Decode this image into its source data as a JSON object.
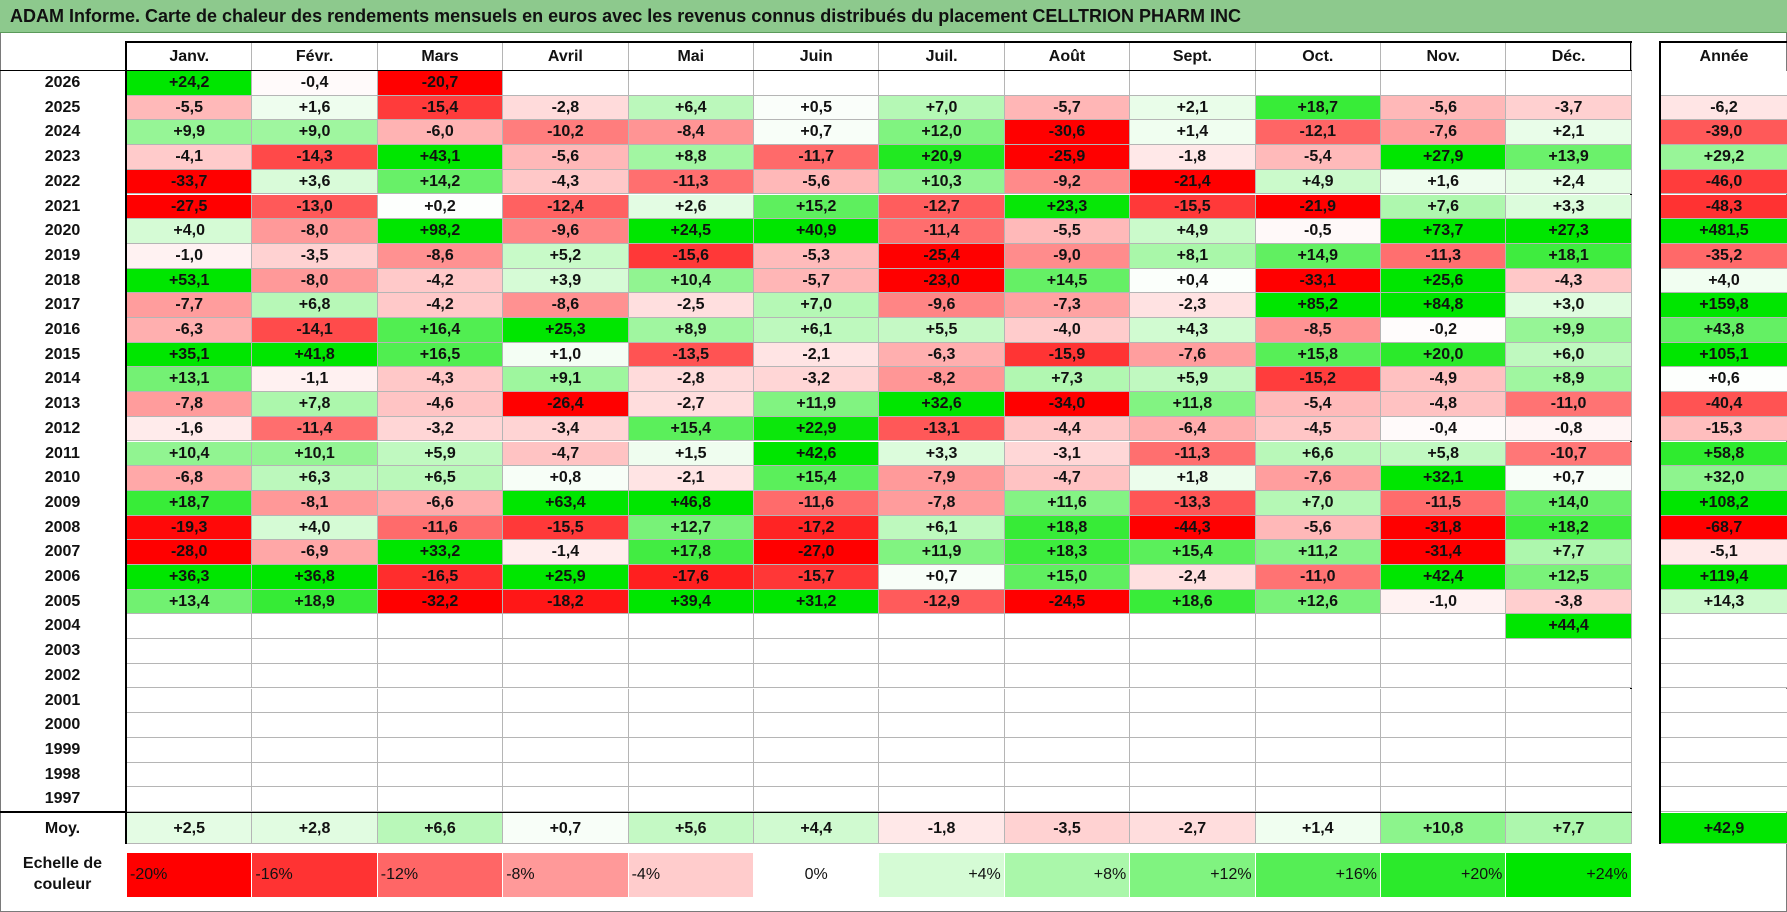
{
  "chart_data": {
    "type": "heatmap",
    "title": "ADAM Informe. Carte de chaleur des rendements mensuels en euros avec les revenus connus distribués du placement CELLTRION PHARM INC",
    "columns": [
      "Janv.",
      "Févr.",
      "Mars",
      "Avril",
      "Mai",
      "Juin",
      "Juil.",
      "Août",
      "Sept.",
      "Oct.",
      "Nov.",
      "Déc."
    ],
    "year_header": "Année",
    "rows": [
      {
        "year": "2026",
        "months": [
          "+24,2",
          "-0,4",
          "-20,7",
          "",
          "",
          "",
          "",
          "",
          "",
          "",
          "",
          ""
        ],
        "annual": ""
      },
      {
        "year": "2025",
        "months": [
          "-5,5",
          "+1,6",
          "-15,4",
          "-2,8",
          "+6,4",
          "+0,5",
          "+7,0",
          "-5,7",
          "+2,1",
          "+18,7",
          "-5,6",
          "-3,7"
        ],
        "annual": "-6,2"
      },
      {
        "year": "2024",
        "months": [
          "+9,9",
          "+9,0",
          "-6,0",
          "-10,2",
          "-8,4",
          "+0,7",
          "+12,0",
          "-30,6",
          "+1,4",
          "-12,1",
          "-7,6",
          "+2,1"
        ],
        "annual": "-39,0"
      },
      {
        "year": "2023",
        "months": [
          "-4,1",
          "-14,3",
          "+43,1",
          "-5,6",
          "+8,8",
          "-11,7",
          "+20,9",
          "-25,9",
          "-1,8",
          "-5,4",
          "+27,9",
          "+13,9"
        ],
        "annual": "+29,2"
      },
      {
        "year": "2022",
        "months": [
          "-33,7",
          "+3,6",
          "+14,2",
          "-4,3",
          "-11,3",
          "-5,6",
          "+10,3",
          "-9,2",
          "-21,4",
          "+4,9",
          "+1,6",
          "+2,4"
        ],
        "annual": "-46,0"
      },
      {
        "year": "2021",
        "months": [
          "-27,5",
          "-13,0",
          "+0,2",
          "-12,4",
          "+2,6",
          "+15,2",
          "-12,7",
          "+23,3",
          "-15,5",
          "-21,9",
          "+7,6",
          "+3,3"
        ],
        "annual": "-48,3"
      },
      {
        "year": "2020",
        "months": [
          "+4,0",
          "-8,0",
          "+98,2",
          "-9,6",
          "+24,5",
          "+40,9",
          "-11,4",
          "-5,5",
          "+4,9",
          "-0,5",
          "+73,7",
          "+27,3"
        ],
        "annual": "+481,5"
      },
      {
        "year": "2019",
        "months": [
          "-1,0",
          "-3,5",
          "-8,6",
          "+5,2",
          "-15,6",
          "-5,3",
          "-25,4",
          "-9,0",
          "+8,1",
          "+14,9",
          "-11,3",
          "+18,1"
        ],
        "annual": "-35,2"
      },
      {
        "year": "2018",
        "months": [
          "+53,1",
          "-8,0",
          "-4,2",
          "+3,9",
          "+10,4",
          "-5,7",
          "-23,0",
          "+14,5",
          "+0,4",
          "-33,1",
          "+25,6",
          "-4,3"
        ],
        "annual": "+4,0"
      },
      {
        "year": "2017",
        "months": [
          "-7,7",
          "+6,8",
          "-4,2",
          "-8,6",
          "-2,5",
          "+7,0",
          "-9,6",
          "-7,3",
          "-2,3",
          "+85,2",
          "+84,8",
          "+3,0"
        ],
        "annual": "+159,8"
      },
      {
        "year": "2016",
        "months": [
          "-6,3",
          "-14,1",
          "+16,4",
          "+25,3",
          "+8,9",
          "+6,1",
          "+5,5",
          "-4,0",
          "+4,3",
          "-8,5",
          "-0,2",
          "+9,9"
        ],
        "annual": "+43,8"
      },
      {
        "year": "2015",
        "months": [
          "+35,1",
          "+41,8",
          "+16,5",
          "+1,0",
          "-13,5",
          "-2,1",
          "-6,3",
          "-15,9",
          "-7,6",
          "+15,8",
          "+20,0",
          "+6,0"
        ],
        "annual": "+105,1"
      },
      {
        "year": "2014",
        "months": [
          "+13,1",
          "-1,1",
          "-4,3",
          "+9,1",
          "-2,8",
          "-3,2",
          "-8,2",
          "+7,3",
          "+5,9",
          "-15,2",
          "-4,9",
          "+8,9"
        ],
        "annual": "+0,6"
      },
      {
        "year": "2013",
        "months": [
          "-7,8",
          "+7,8",
          "-4,6",
          "-26,4",
          "-2,7",
          "+11,9",
          "+32,6",
          "-34,0",
          "+11,8",
          "-5,4",
          "-4,8",
          "-11,0"
        ],
        "annual": "-40,4"
      },
      {
        "year": "2012",
        "months": [
          "-1,6",
          "-11,4",
          "-3,2",
          "-3,4",
          "+15,4",
          "+22,9",
          "-13,1",
          "-4,4",
          "-6,4",
          "-4,5",
          "-0,4",
          "-0,8"
        ],
        "annual": "-15,3"
      },
      {
        "year": "2011",
        "months": [
          "+10,4",
          "+10,1",
          "+5,9",
          "-4,7",
          "+1,5",
          "+42,6",
          "+3,3",
          "-3,1",
          "-11,3",
          "+6,6",
          "+5,8",
          "-10,7"
        ],
        "annual": "+58,8"
      },
      {
        "year": "2010",
        "months": [
          "-6,8",
          "+6,3",
          "+6,5",
          "+0,8",
          "-2,1",
          "+15,4",
          "-7,9",
          "-4,7",
          "+1,8",
          "-7,6",
          "+32,1",
          "+0,7"
        ],
        "annual": "+32,0"
      },
      {
        "year": "2009",
        "months": [
          "+18,7",
          "-8,1",
          "-6,6",
          "+63,4",
          "+46,8",
          "-11,6",
          "-7,8",
          "+11,6",
          "-13,3",
          "+7,0",
          "-11,5",
          "+14,0"
        ],
        "annual": "+108,2"
      },
      {
        "year": "2008",
        "months": [
          "-19,3",
          "+4,0",
          "-11,6",
          "-15,5",
          "+12,7",
          "-17,2",
          "+6,1",
          "+18,8",
          "-44,3",
          "-5,6",
          "-31,8",
          "+18,2"
        ],
        "annual": "-68,7"
      },
      {
        "year": "2007",
        "months": [
          "-28,0",
          "-6,9",
          "+33,2",
          "-1,4",
          "+17,8",
          "-27,0",
          "+11,9",
          "+18,3",
          "+15,4",
          "+11,2",
          "-31,4",
          "+7,7"
        ],
        "annual": "-5,1"
      },
      {
        "year": "2006",
        "months": [
          "+36,3",
          "+36,8",
          "-16,5",
          "+25,9",
          "-17,6",
          "-15,7",
          "+0,7",
          "+15,0",
          "-2,4",
          "-11,0",
          "+42,4",
          "+12,5"
        ],
        "annual": "+119,4"
      },
      {
        "year": "2005",
        "months": [
          "+13,4",
          "+18,9",
          "-32,2",
          "-18,2",
          "+39,4",
          "+31,2",
          "-12,9",
          "-24,5",
          "+18,6",
          "+12,6",
          "-1,0",
          "-3,8"
        ],
        "annual": "+14,3"
      },
      {
        "year": "2004",
        "months": [
          "",
          "",
          "",
          "",
          "",
          "",
          "",
          "",
          "",
          "",
          "",
          "+44,4"
        ],
        "annual": ""
      },
      {
        "year": "2003",
        "months": [
          "",
          "",
          "",
          "",
          "",
          "",
          "",
          "",
          "",
          "",
          "",
          ""
        ],
        "annual": ""
      },
      {
        "year": "2002",
        "months": [
          "",
          "",
          "",
          "",
          "",
          "",
          "",
          "",
          "",
          "",
          "",
          ""
        ],
        "annual": ""
      },
      {
        "year": "2001",
        "months": [
          "",
          "",
          "",
          "",
          "",
          "",
          "",
          "",
          "",
          "",
          "",
          ""
        ],
        "annual": ""
      },
      {
        "year": "2000",
        "months": [
          "",
          "",
          "",
          "",
          "",
          "",
          "",
          "",
          "",
          "",
          "",
          ""
        ],
        "annual": ""
      },
      {
        "year": "1999",
        "months": [
          "",
          "",
          "",
          "",
          "",
          "",
          "",
          "",
          "",
          "",
          "",
          ""
        ],
        "annual": ""
      },
      {
        "year": "1998",
        "months": [
          "",
          "",
          "",
          "",
          "",
          "",
          "",
          "",
          "",
          "",
          "",
          ""
        ],
        "annual": ""
      },
      {
        "year": "1997",
        "months": [
          "",
          "",
          "",
          "",
          "",
          "",
          "",
          "",
          "",
          "",
          "",
          ""
        ],
        "annual": ""
      }
    ],
    "average": {
      "label": "Moy.",
      "months": [
        "+2,5",
        "+2,8",
        "+6,6",
        "+0,7",
        "+5,6",
        "+4,4",
        "-1,8",
        "-3,5",
        "-2,7",
        "+1,4",
        "+10,8",
        "+7,7"
      ],
      "annual": "+42,9"
    },
    "scale": {
      "label": "Echelle de couleur",
      "entries": [
        "-20%",
        "-16%",
        "-12%",
        "-8%",
        "-4%",
        "0%",
        "+4%",
        "+8%",
        "+12%",
        "+16%",
        "+20%",
        "+24%"
      ],
      "stops": [
        -20,
        -16,
        -12,
        -8,
        -4,
        0,
        4,
        8,
        12,
        16,
        20,
        24
      ]
    }
  }
}
